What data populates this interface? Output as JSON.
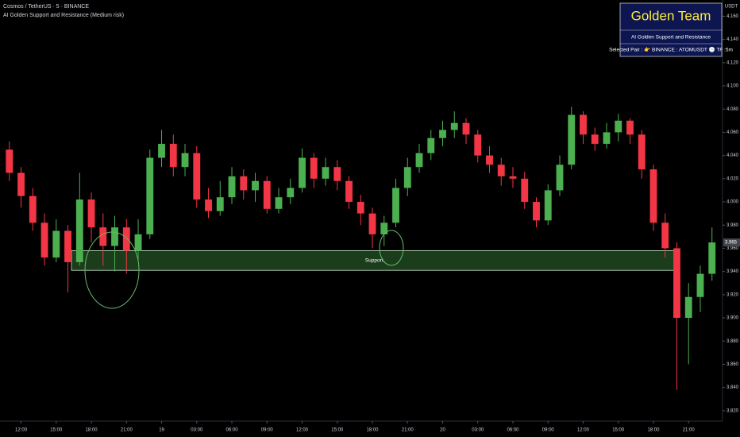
{
  "chart_data": {
    "type": "candlestick",
    "title": "Cosmos / TetherUS · 5 · BINANCE",
    "subtitle": "AI Golden Support and Resistance (Medium risk)",
    "y_label": "USDT",
    "panel": {
      "title": "Golden Team",
      "subtitle": "AI Golden Support and Resistance",
      "pair": "Selected Pair : 👉 BINANCE : ATOMUSDT 🕒 TF :5m"
    },
    "support_zone": {
      "label": "Support",
      "low": 3.941,
      "high": 3.958,
      "x_start": 4.3,
      "x_end": 56
    },
    "up_color": "#4caf50",
    "down_color": "#f23645",
    "x": [
      -1,
      0,
      1,
      2,
      3,
      4,
      5,
      6,
      7,
      8,
      9,
      10,
      11,
      12,
      13,
      14,
      15,
      16,
      17,
      18,
      19,
      20,
      21,
      22,
      23,
      24,
      25,
      26,
      27,
      28,
      29,
      30,
      31,
      32,
      33,
      34,
      35,
      36,
      37,
      38,
      39,
      40,
      41,
      42,
      43,
      44,
      45,
      46,
      47,
      48,
      49,
      50,
      51,
      52,
      53,
      54,
      55,
      56,
      57,
      58,
      59
    ],
    "open": [
      4.045,
      4.025,
      4.005,
      3.982,
      3.952,
      3.975,
      3.948,
      4.002,
      3.978,
      3.962,
      3.978,
      3.958,
      3.972,
      4.038,
      4.05,
      4.03,
      4.042,
      4.002,
      3.992,
      4.004,
      4.022,
      4.01,
      4.018,
      3.994,
      4.004,
      4.012,
      4.038,
      4.02,
      4.03,
      4.018,
      4.0,
      3.99,
      3.972,
      3.982,
      4.012,
      4.03,
      4.042,
      4.055,
      4.062,
      4.068,
      4.058,
      4.04,
      4.032,
      4.022,
      4.02,
      4.0,
      3.984,
      4.01,
      4.032,
      4.075,
      4.058,
      4.05,
      4.06,
      4.07,
      4.058,
      4.028,
      3.982,
      3.96,
      3.9,
      3.918,
      3.938
    ],
    "high": [
      4.052,
      4.03,
      4.012,
      3.99,
      3.985,
      3.98,
      4.025,
      4.008,
      3.99,
      3.988,
      3.985,
      3.985,
      4.045,
      4.062,
      4.058,
      4.05,
      4.048,
      4.012,
      4.018,
      4.03,
      4.028,
      4.025,
      4.022,
      4.012,
      4.02,
      4.046,
      4.042,
      4.038,
      4.036,
      4.022,
      4.006,
      3.995,
      3.988,
      4.02,
      4.038,
      4.05,
      4.062,
      4.07,
      4.078,
      4.072,
      4.062,
      4.048,
      4.038,
      4.03,
      4.026,
      4.004,
      4.015,
      4.04,
      4.082,
      4.078,
      4.064,
      4.068,
      4.076,
      4.072,
      4.062,
      4.032,
      3.99,
      3.965,
      3.93,
      3.945,
      3.978
    ],
    "low": [
      4.018,
      3.995,
      3.975,
      3.945,
      3.948,
      3.922,
      3.945,
      3.965,
      3.945,
      3.94,
      3.938,
      3.95,
      3.968,
      4.03,
      4.022,
      4.022,
      3.995,
      3.986,
      3.988,
      3.998,
      4.002,
      4.0,
      3.99,
      3.99,
      3.998,
      4.008,
      4.012,
      4.014,
      4.01,
      3.994,
      3.98,
      3.96,
      3.962,
      3.978,
      4.005,
      4.025,
      4.036,
      4.048,
      4.055,
      4.05,
      4.034,
      4.025,
      4.014,
      4.012,
      3.994,
      3.978,
      3.98,
      4.005,
      4.028,
      4.05,
      4.044,
      4.046,
      4.052,
      4.05,
      4.02,
      3.975,
      3.952,
      3.838,
      3.86,
      3.905,
      3.932
    ],
    "close": [
      4.025,
      4.005,
      3.982,
      3.952,
      3.975,
      3.948,
      4.002,
      3.978,
      3.962,
      3.978,
      3.958,
      3.972,
      4.038,
      4.05,
      4.03,
      4.042,
      4.002,
      3.992,
      4.004,
      4.022,
      4.01,
      4.018,
      3.994,
      4.004,
      4.012,
      4.038,
      4.02,
      4.03,
      4.018,
      4.0,
      3.99,
      3.972,
      3.982,
      4.012,
      4.03,
      4.042,
      4.055,
      4.062,
      4.068,
      4.058,
      4.04,
      4.032,
      4.022,
      4.02,
      4.0,
      3.984,
      4.01,
      4.032,
      4.075,
      4.058,
      4.05,
      4.06,
      4.07,
      4.058,
      4.028,
      3.982,
      3.96,
      3.9,
      3.918,
      3.938,
      3.965
    ],
    "xlim": [
      -1.8,
      59.9
    ],
    "xticks": [
      {
        "value": 0,
        "label": "12:00"
      },
      {
        "value": 3,
        "label": "15:00"
      },
      {
        "value": 6,
        "label": "18:00"
      },
      {
        "value": 9,
        "label": "21:00"
      },
      {
        "value": 12,
        "label": "19"
      },
      {
        "value": 15,
        "label": "03:00"
      },
      {
        "value": 18,
        "label": "06:00"
      },
      {
        "value": 21,
        "label": "09:00"
      },
      {
        "value": 24,
        "label": "12:00"
      },
      {
        "value": 27,
        "label": "15:00"
      },
      {
        "value": 30,
        "label": "18:00"
      },
      {
        "value": 33,
        "label": "21:00"
      },
      {
        "value": 36,
        "label": "20"
      },
      {
        "value": 39,
        "label": "03:00"
      },
      {
        "value": 42,
        "label": "06:00"
      },
      {
        "value": 45,
        "label": "09:00"
      },
      {
        "value": 48,
        "label": "12:00"
      },
      {
        "value": 51,
        "label": "15:00"
      },
      {
        "value": 54,
        "label": "18:00"
      },
      {
        "value": 57,
        "label": "21:00"
      }
    ],
    "ylim": [
      3.811,
      4.174
    ],
    "yticks": [
      {
        "value": 3.82,
        "label": "3.820"
      },
      {
        "value": 3.84,
        "label": "3.840"
      },
      {
        "value": 3.86,
        "label": "3.860"
      },
      {
        "value": 3.88,
        "label": "3.880"
      },
      {
        "value": 3.9,
        "label": "3.900"
      },
      {
        "value": 3.92,
        "label": "3.920"
      },
      {
        "value": 3.94,
        "label": "3.940"
      },
      {
        "value": 3.96,
        "label": "3.960"
      },
      {
        "value": 3.98,
        "label": "3.980"
      },
      {
        "value": 4.0,
        "label": "4.000"
      },
      {
        "value": 4.02,
        "label": "4.020"
      },
      {
        "value": 4.04,
        "label": "4.040"
      },
      {
        "value": 4.06,
        "label": "4.060"
      },
      {
        "value": 4.08,
        "label": "4.080"
      },
      {
        "value": 4.1,
        "label": "4.100"
      },
      {
        "value": 4.12,
        "label": "4.120"
      },
      {
        "value": 4.14,
        "label": "4.140"
      },
      {
        "value": 4.16,
        "label": "4.160"
      }
    ]
  }
}
